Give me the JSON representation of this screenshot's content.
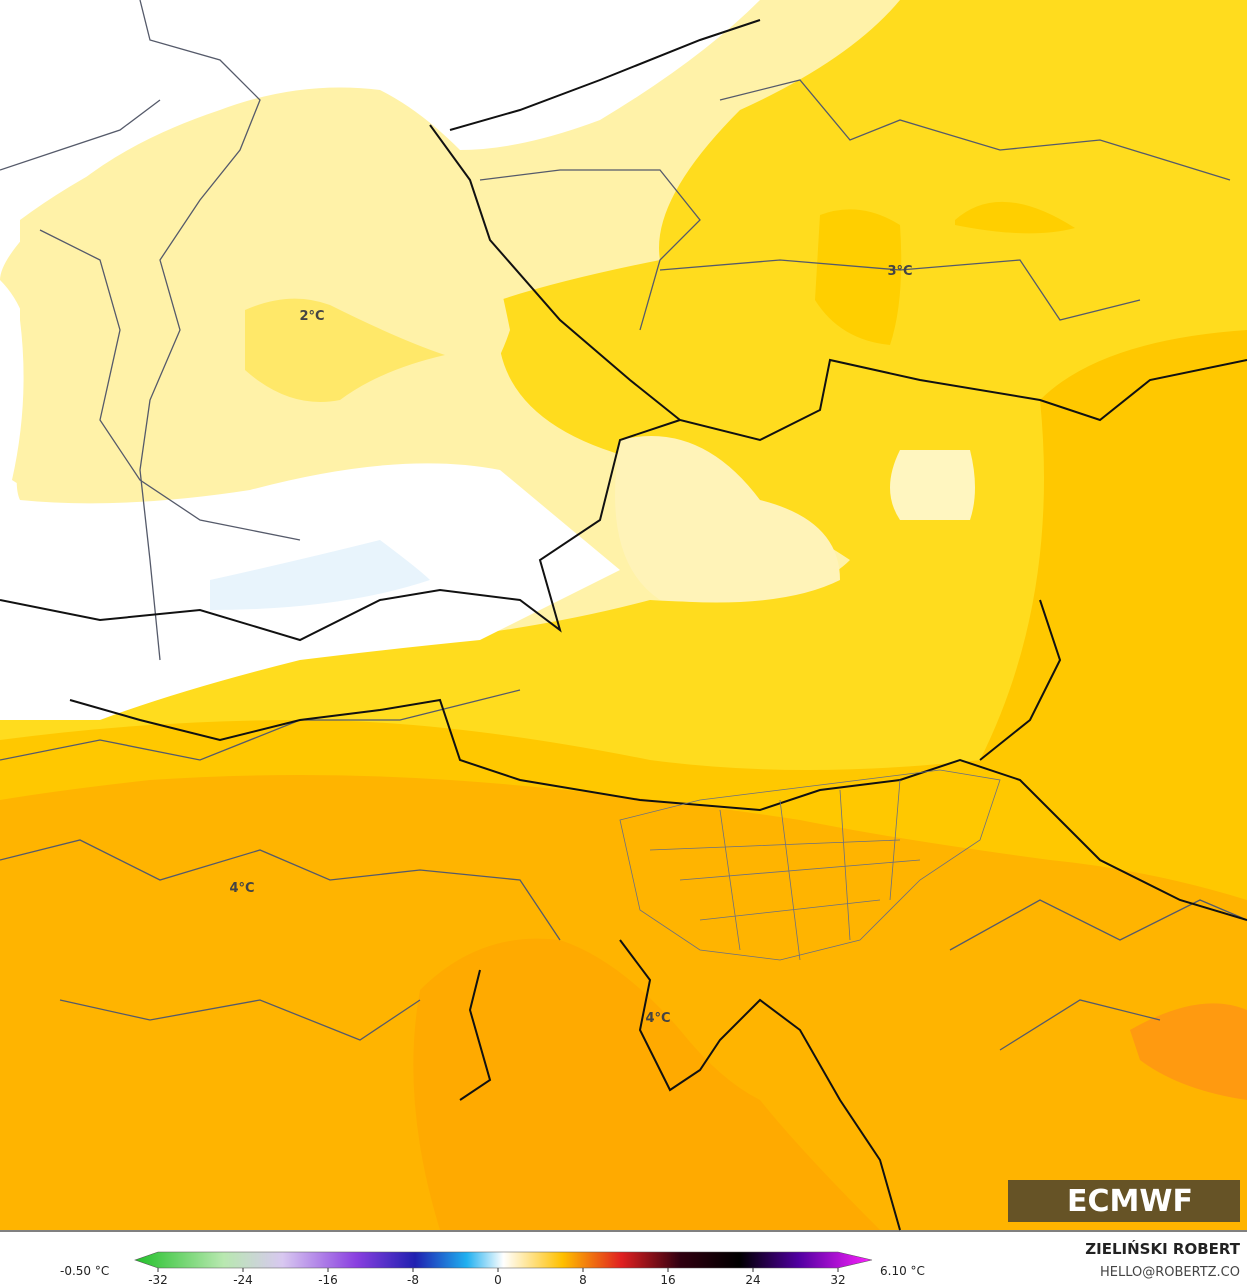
{
  "map": {
    "contour_labels": [
      "2°C",
      "3°C",
      "4°C",
      "4°C"
    ],
    "logo": "ECMWF",
    "author": "ZIELIŃSKI ROBERT",
    "contact": "HELLO@ROBERTZ.CO",
    "colorbar": {
      "min_label": "-0.50 °C",
      "max_label": "6.10 °C",
      "ticks": [
        -32,
        -24,
        -16,
        -8,
        0,
        8,
        16,
        24,
        32
      ]
    }
  }
}
